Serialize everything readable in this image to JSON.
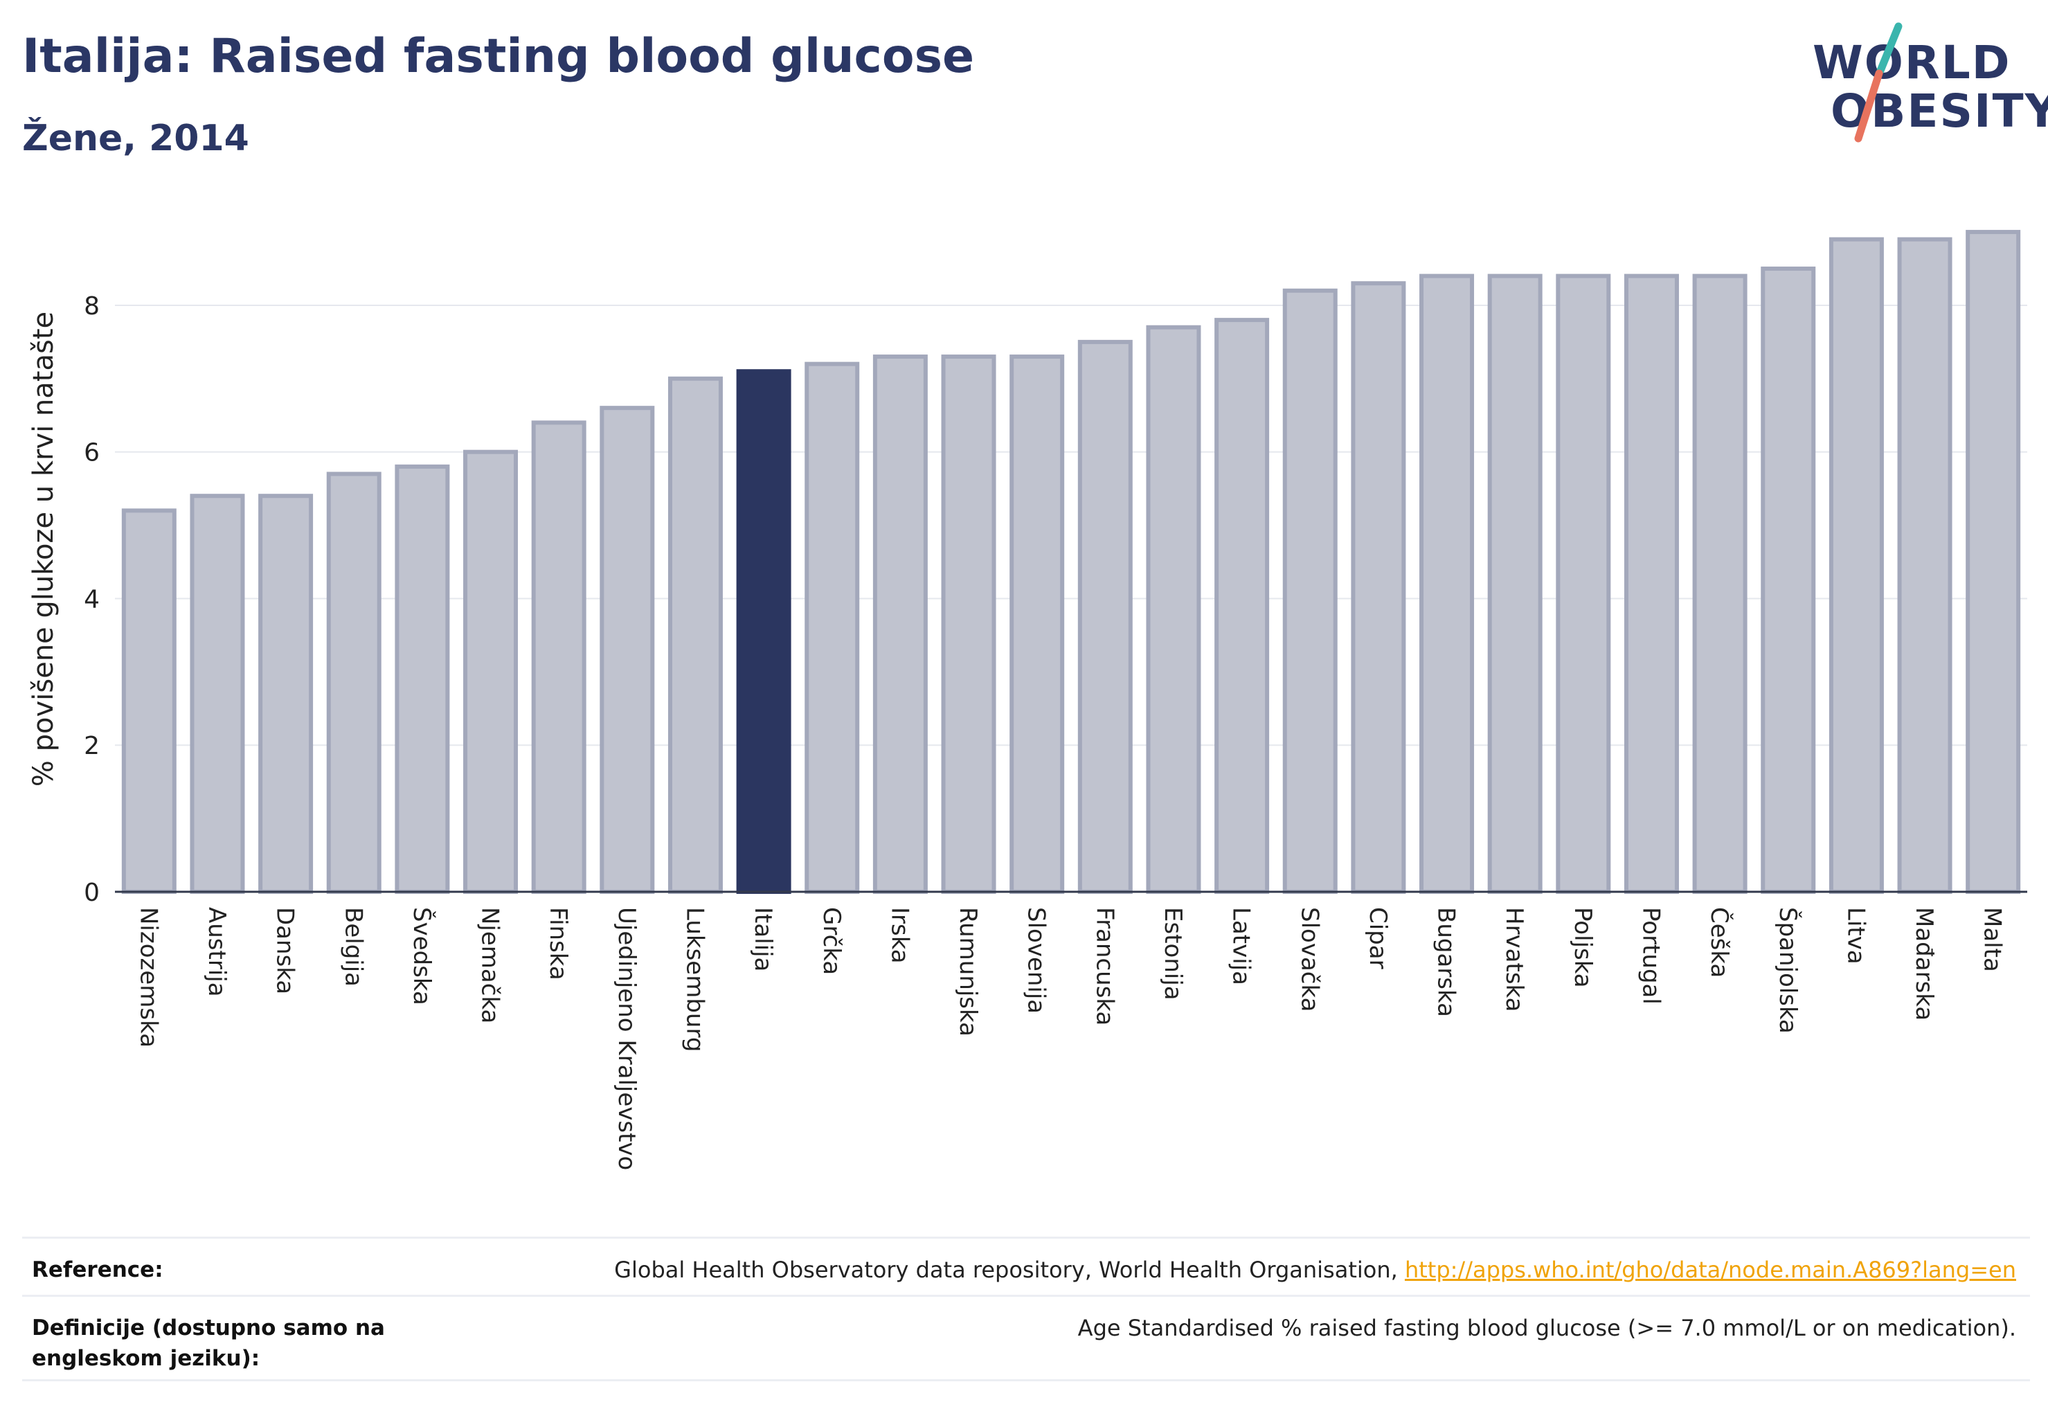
{
  "header": {
    "title": "Italija: Raised fasting blood glucose",
    "subtitle": "Žene, 2014"
  },
  "logo": {
    "line1": "WORLD",
    "line2": "OBESITY"
  },
  "chart_data": {
    "type": "bar",
    "ylabel": "% povišene glukoze u krvi natašte",
    "ylim": [
      0,
      9.35
    ],
    "yticks": [
      0,
      2,
      4,
      6,
      8
    ],
    "grid": true,
    "highlight": "Italija",
    "colors": {
      "bar": "#c0c3cf",
      "bar_edge": "#a3a8bb",
      "highlight": "#2b3660",
      "grid": "#e6e8ee"
    },
    "categories": [
      "Nizozemska",
      "Austrija",
      "Danska",
      "Belgija",
      "Švedska",
      "Njemačka",
      "Finska",
      "Ujedinjeno Kraljevstvo",
      "Luksemburg",
      "Italija",
      "Grčka",
      "Irska",
      "Rumunjska",
      "Slovenija",
      "Francuska",
      "Estonija",
      "Latvija",
      "Slovačka",
      "Cipar",
      "Bugarska",
      "Hrvatska",
      "Poljska",
      "Portugal",
      "Češka",
      "Španjolska",
      "Litva",
      "Mađarska",
      "Malta"
    ],
    "values": [
      5.2,
      5.4,
      5.4,
      5.7,
      5.8,
      6.0,
      6.4,
      6.6,
      7.0,
      7.1,
      7.2,
      7.3,
      7.3,
      7.3,
      7.5,
      7.7,
      7.8,
      8.2,
      8.3,
      8.4,
      8.4,
      8.4,
      8.4,
      8.4,
      8.5,
      8.9,
      8.9,
      9.0
    ]
  },
  "footer": {
    "reference_label": "Reference:",
    "reference_text": "Global Health Observatory data repository, World Health Organisation, ",
    "reference_link": "http://apps.who.int/gho/data/node.main.A869?lang=en",
    "definition_label": "Definicije (dostupno samo na engleskom jeziku):",
    "definition_text": "Age Standardised % raised fasting blood glucose (>= 7.0 mmol/L or on medication)."
  }
}
